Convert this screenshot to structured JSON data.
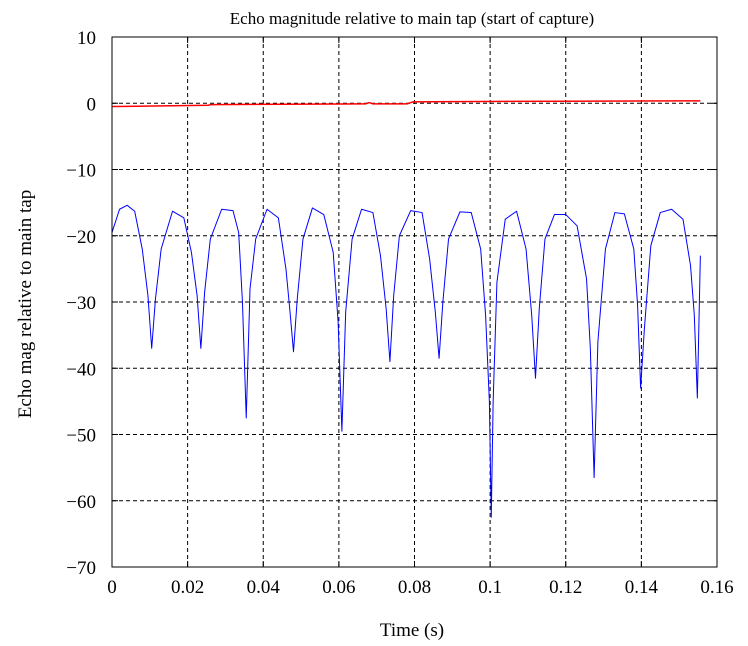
{
  "chart_data": {
    "type": "line",
    "title": "Echo magnitude relative to main tap (start of capture)",
    "xlabel": "Time (s)",
    "ylabel": "Echo mag relative to main tap",
    "xlim": [
      0,
      0.16
    ],
    "ylim": [
      -70,
      10
    ],
    "xticks": [
      0,
      0.02,
      0.04,
      0.06,
      0.08,
      0.1,
      0.12,
      0.14,
      0.16
    ],
    "xtick_labels": [
      "0",
      "0.02",
      "0.04",
      "0.06",
      "0.08",
      "0.1",
      "0.12",
      "0.14",
      "0.16"
    ],
    "yticks": [
      10,
      0,
      -10,
      -20,
      -30,
      -40,
      -50,
      -60,
      -70
    ],
    "ytick_labels": [
      "10",
      "0",
      "−10",
      "−20",
      "−30",
      "−40",
      "−50",
      "−60",
      "−70"
    ],
    "grid": true,
    "grid_style": "dashed",
    "series": [
      {
        "color": "#0000ff",
        "x": [
          0,
          0.002,
          0.004,
          0.006,
          0.008,
          0.0095,
          0.0105,
          0.0115,
          0.013,
          0.016,
          0.019,
          0.021,
          0.0225,
          0.0235,
          0.0245,
          0.026,
          0.029,
          0.032,
          0.0335,
          0.0345,
          0.0355,
          0.0365,
          0.038,
          0.041,
          0.044,
          0.046,
          0.047,
          0.048,
          0.049,
          0.0505,
          0.053,
          0.056,
          0.0585,
          0.0598,
          0.0608,
          0.0618,
          0.0635,
          0.066,
          0.069,
          0.071,
          0.0725,
          0.0735,
          0.0745,
          0.076,
          0.079,
          0.082,
          0.084,
          0.0855,
          0.0865,
          0.0875,
          0.089,
          0.092,
          0.095,
          0.0975,
          0.0988,
          0.0998,
          0.1003,
          0.1008,
          0.1018,
          0.104,
          0.107,
          0.1095,
          0.111,
          0.112,
          0.113,
          0.1145,
          0.117,
          0.12,
          0.123,
          0.1255,
          0.1265,
          0.1275,
          0.1285,
          0.1305,
          0.133,
          0.1355,
          0.138,
          0.139,
          0.1398,
          0.1408,
          0.1425,
          0.145,
          0.148,
          0.151,
          0.153,
          0.154,
          0.1548,
          0.1556
        ],
        "y": [
          -19.5,
          -16.0,
          -15.4,
          -16.3,
          -22.0,
          -29.0,
          -37.0,
          -29.5,
          -22.0,
          -16.3,
          -17.3,
          -22.5,
          -29.0,
          -37.0,
          -28.5,
          -20.5,
          -16.0,
          -16.2,
          -19.5,
          -30.0,
          -47.5,
          -28.0,
          -20.5,
          -16.0,
          -17.3,
          -25.0,
          -31.0,
          -37.5,
          -29.5,
          -20.5,
          -15.8,
          -16.8,
          -22.5,
          -33.0,
          -49.5,
          -31.5,
          -20.5,
          -16.0,
          -16.5,
          -23.0,
          -31.0,
          -39.0,
          -29.0,
          -20.0,
          -16.2,
          -16.5,
          -23.5,
          -31.5,
          -38.5,
          -30.0,
          -20.5,
          -16.4,
          -16.5,
          -22.0,
          -32.0,
          -45.0,
          -62.5,
          -45.0,
          -27.0,
          -17.5,
          -16.3,
          -22.0,
          -32.0,
          -41.5,
          -31.0,
          -20.5,
          -16.8,
          -16.8,
          -18.5,
          -26.5,
          -37.0,
          -56.5,
          -36.0,
          -22.0,
          -16.5,
          -16.7,
          -22.0,
          -30.5,
          -43.0,
          -34.0,
          -21.5,
          -16.5,
          -16.0,
          -17.5,
          -24.5,
          -32.0,
          -44.5,
          -23.0
        ]
      },
      {
        "color": "#ff0000",
        "x": [
          0,
          0.0255,
          0.026,
          0.067,
          0.068,
          0.069,
          0.078,
          0.0795,
          0.09,
          0.12,
          0.15,
          0.1556
        ],
        "y": [
          -0.5,
          -0.3,
          -0.2,
          -0.1,
          0.1,
          -0.1,
          -0.1,
          0.2,
          0.25,
          0.3,
          0.35,
          0.35
        ]
      }
    ]
  }
}
